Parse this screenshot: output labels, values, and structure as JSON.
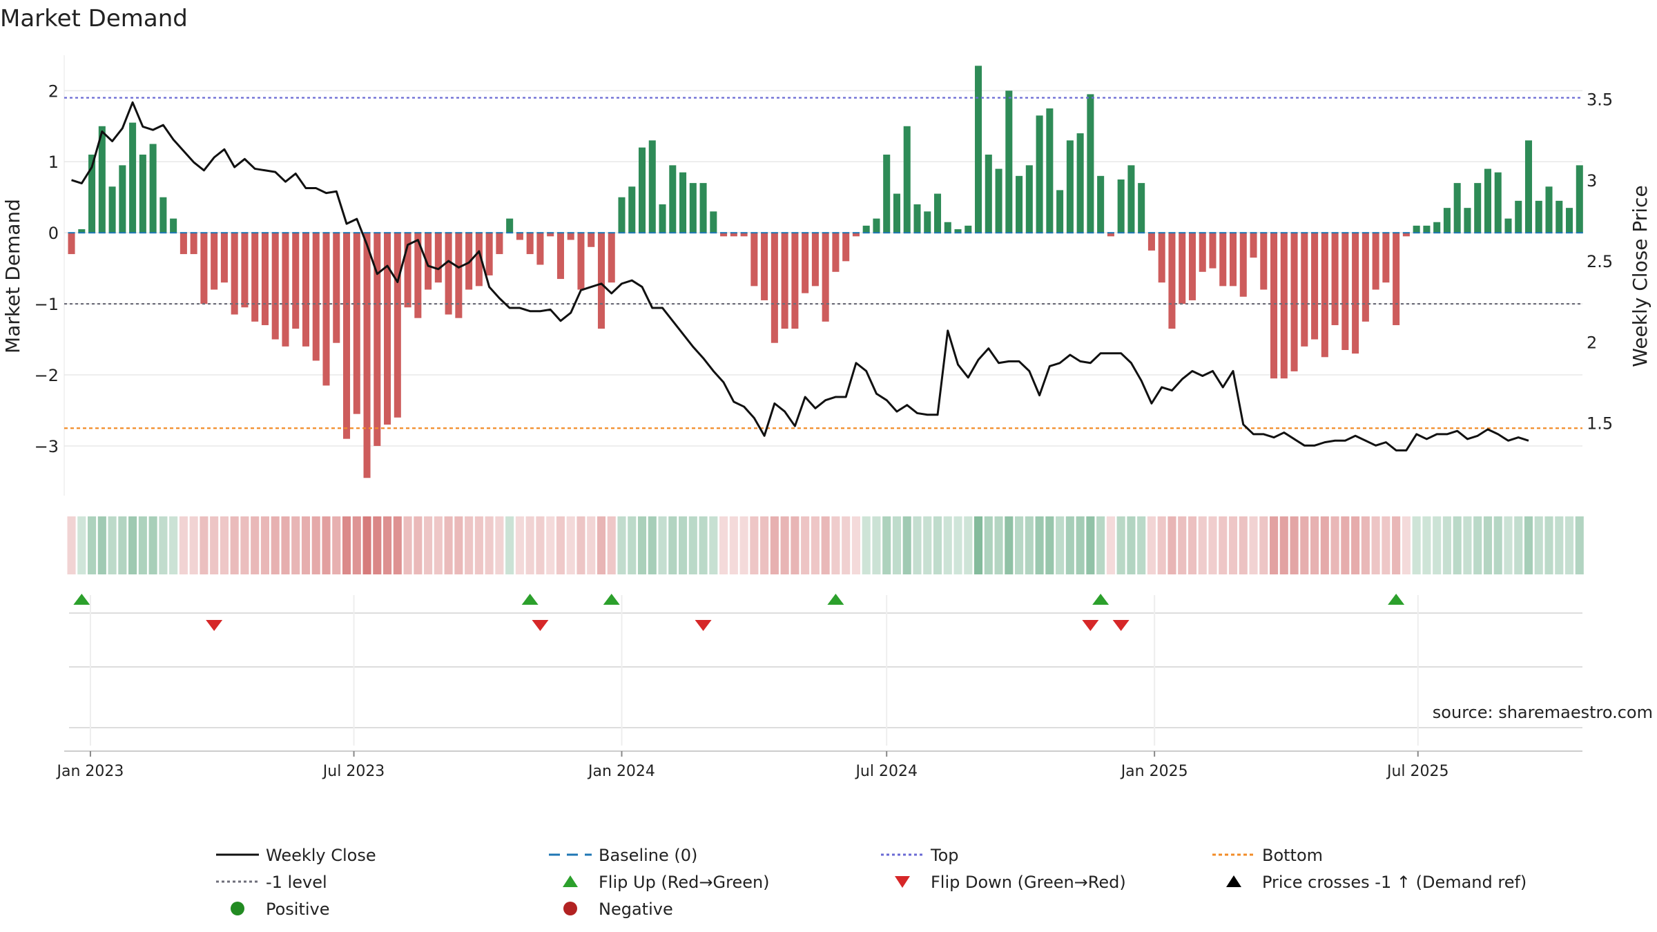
{
  "chart_data": {
    "type": "bar+line",
    "title": "Market Demand",
    "ylabel_left": "Market Demand",
    "ylabel_right": "Weekly Close Price",
    "ylim_left": [
      -3.7,
      2.45
    ],
    "ylim_right": [
      1.05,
      3.75
    ],
    "yticks_left": [
      2,
      1,
      0,
      -1,
      -2,
      -3
    ],
    "yticks_left_labels": [
      "2",
      "1",
      "0",
      "−1",
      "−2",
      "−3"
    ],
    "yticks_right": [
      3.5,
      3,
      2.5,
      2,
      1.5
    ],
    "yticks_right_labels": [
      "3.5",
      "3",
      "2.5",
      "2",
      "1.5"
    ],
    "x_start": "2022-12-19",
    "x_week_days": 7,
    "x_domain": [
      "2022-12-14",
      "2025-10-22"
    ],
    "x_ticks": [
      {
        "date": "2023-01-01",
        "label": "Jan 2023"
      },
      {
        "date": "2023-07-01",
        "label": "Jul 2023"
      },
      {
        "date": "2024-01-01",
        "label": "Jan 2024"
      },
      {
        "date": "2024-07-01",
        "label": "Jul 2024"
      },
      {
        "date": "2025-01-01",
        "label": "Jan 2025"
      },
      {
        "date": "2025-07-01",
        "label": "Jul 2025"
      }
    ],
    "top_level": 1.9,
    "bottom_level": -2.75,
    "minus_one_level": -1,
    "baseline_level": 0,
    "demand": [
      -0.3,
      0.05,
      1.1,
      1.5,
      0.65,
      0.95,
      1.55,
      1.1,
      1.25,
      0.5,
      0.2,
      -0.3,
      -0.3,
      -1.0,
      -0.8,
      -0.7,
      -1.15,
      -1.05,
      -1.25,
      -1.3,
      -1.5,
      -1.6,
      -1.35,
      -1.6,
      -1.8,
      -2.15,
      -1.55,
      -2.9,
      -2.55,
      -3.45,
      -3.0,
      -2.7,
      -2.6,
      -1.05,
      -1.2,
      -0.8,
      -0.7,
      -1.15,
      -1.2,
      -0.8,
      -0.75,
      -0.6,
      -0.3,
      0.2,
      -0.1,
      -0.3,
      -0.45,
      -0.05,
      -0.65,
      -0.1,
      -0.8,
      -0.2,
      -1.35,
      -0.7,
      0.5,
      0.65,
      1.2,
      1.3,
      0.4,
      0.95,
      0.85,
      0.7,
      0.7,
      0.3,
      -0.05,
      -0.05,
      -0.05,
      -0.75,
      -0.95,
      -1.55,
      -1.35,
      -1.35,
      -0.85,
      -0.75,
      -1.25,
      -0.55,
      -0.4,
      -0.05,
      0.1,
      0.2,
      1.1,
      0.55,
      1.5,
      0.4,
      0.3,
      0.55,
      0.15,
      0.05,
      0.1,
      2.35,
      1.1,
      0.9,
      2.0,
      0.8,
      0.95,
      1.65,
      1.75,
      0.6,
      1.3,
      1.4,
      1.95,
      0.8,
      -0.05,
      0.75,
      0.95,
      0.7,
      -0.25,
      -0.7,
      -1.35,
      -1.0,
      -0.95,
      -0.55,
      -0.5,
      -0.75,
      -0.75,
      -0.9,
      -0.35,
      -0.8,
      -2.05,
      -2.05,
      -1.95,
      -1.6,
      -1.5,
      -1.75,
      -1.3,
      -1.65,
      -1.7,
      -1.25,
      -0.8,
      -0.7,
      -1.3,
      -0.05,
      0.1,
      0.1,
      0.15,
      0.35,
      0.7,
      0.35,
      0.7,
      0.9,
      0.85,
      0.2,
      0.45,
      1.3,
      0.45,
      0.65,
      0.45,
      0.35,
      0.95
    ],
    "close": [
      3.0,
      2.98,
      3.08,
      3.3,
      3.24,
      3.32,
      3.48,
      3.33,
      3.31,
      3.34,
      3.25,
      3.18,
      3.11,
      3.06,
      3.14,
      3.19,
      3.08,
      3.13,
      3.07,
      3.06,
      3.05,
      2.99,
      3.04,
      2.95,
      2.95,
      2.92,
      2.93,
      2.73,
      2.76,
      2.6,
      2.42,
      2.47,
      2.37,
      2.6,
      2.63,
      2.47,
      2.45,
      2.5,
      2.46,
      2.49,
      2.56,
      2.34,
      2.27,
      2.21,
      2.21,
      2.19,
      2.19,
      2.2,
      2.13,
      2.18,
      2.32,
      2.34,
      2.36,
      2.3,
      2.36,
      2.38,
      2.34,
      2.21,
      2.21,
      2.13,
      2.05,
      1.97,
      1.9,
      1.82,
      1.75,
      1.63,
      1.6,
      1.53,
      1.42,
      1.62,
      1.57,
      1.48,
      1.66,
      1.59,
      1.64,
      1.66,
      1.66,
      1.87,
      1.82,
      1.68,
      1.64,
      1.57,
      1.61,
      1.56,
      1.55,
      1.55,
      2.07,
      1.86,
      1.78,
      1.89,
      1.96,
      1.87,
      1.88,
      1.88,
      1.82,
      1.67,
      1.85,
      1.87,
      1.92,
      1.88,
      1.87,
      1.93,
      1.93,
      1.93,
      1.87,
      1.76,
      1.62,
      1.72,
      1.7,
      1.77,
      1.82,
      1.79,
      1.82,
      1.72,
      1.82,
      1.49,
      1.43,
      1.43,
      1.41,
      1.44,
      1.4,
      1.36,
      1.36,
      1.38,
      1.39,
      1.39,
      1.42,
      1.39,
      1.36,
      1.38,
      1.33,
      1.33,
      1.43,
      1.4,
      1.43,
      1.43,
      1.45,
      1.4,
      1.42,
      1.46,
      1.43,
      1.39,
      1.41,
      1.39
    ],
    "flip_up_dates": [
      "2022-12-26",
      "2023-10-30",
      "2023-12-25",
      "2024-05-27",
      "2024-11-25",
      "2025-06-16"
    ],
    "flip_down_dates": [
      "2023-03-27",
      "2023-11-06",
      "2024-02-26",
      "2024-11-18",
      "2024-12-09"
    ],
    "legend": [
      {
        "key": "close",
        "label": "Weekly Close"
      },
      {
        "key": "baseline",
        "label": "Baseline (0)"
      },
      {
        "key": "top",
        "label": "Top"
      },
      {
        "key": "bottom",
        "label": "Bottom"
      },
      {
        "key": "minus1",
        "label": "-1 level"
      },
      {
        "key": "flipup",
        "label": "Flip Up (Red→Green)"
      },
      {
        "key": "flipdown",
        "label": "Flip Down (Green→Red)"
      },
      {
        "key": "pricecross",
        "label": "Price crosses -1 ↑ (Demand ref)"
      },
      {
        "key": "positive",
        "label": "Positive"
      },
      {
        "key": "negative",
        "label": "Negative"
      }
    ],
    "source": "source: sharemaestro.com"
  },
  "colors": {
    "positive": "#2e8b57",
    "negative": "#cd5c5c",
    "close": "#111111",
    "top": "#6a6ad4",
    "bottom": "#f28c28",
    "minus1": "#6e6e7a",
    "baseline": "#1f77b4",
    "flip_up": "#2ca02c",
    "flip_down": "#d62728",
    "grid": "#e8e8e8"
  }
}
